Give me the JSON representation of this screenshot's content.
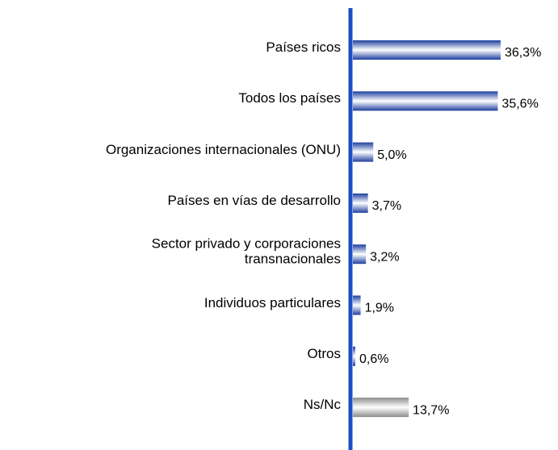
{
  "chart_data": {
    "type": "bar",
    "categories": [
      "Países ricos",
      "Todos los países",
      "Organizaciones internacionales (ONU)",
      "Países en vías de desarrollo",
      "Sector privado y corporaciones\ntransnacionales",
      "Individuos particulares",
      "Otros",
      "Ns/Nc"
    ],
    "values": [
      36.3,
      35.6,
      5.0,
      3.7,
      3.2,
      1.9,
      0.6,
      13.7
    ],
    "value_labels": [
      "36,3%",
      "35,6%",
      "5,0%",
      "3,7%",
      "3,2%",
      "1,9%",
      "0,6%",
      "13,7%"
    ],
    "colors": [
      "#1f3f9f",
      "#1f3f9f",
      "#1f3f9f",
      "#1f3f9f",
      "#1f3f9f",
      "#1f3f9f",
      "#1f3f9f",
      "#8c8c8c"
    ],
    "axis_color": "#1a4fc4"
  }
}
